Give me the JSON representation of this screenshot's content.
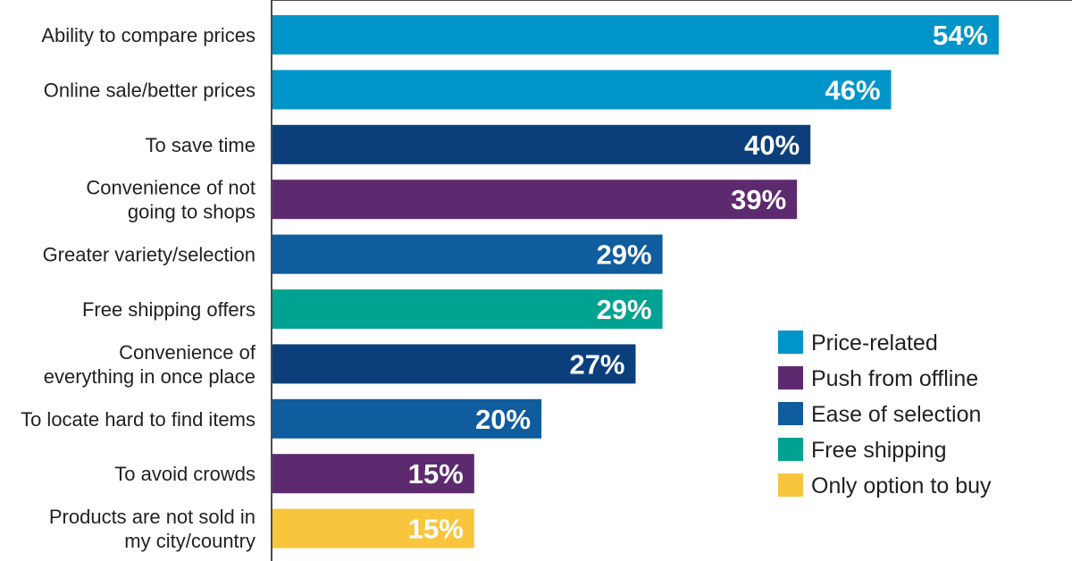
{
  "chart_data": {
    "type": "bar",
    "orientation": "horizontal",
    "categories": [
      [
        "Ability to compare prices"
      ],
      [
        "Online sale/better prices"
      ],
      [
        "To save time"
      ],
      [
        "Convenience of not",
        "going to shops"
      ],
      [
        "Greater variety/selection"
      ],
      [
        "Free shipping offers"
      ],
      [
        "Convenience of",
        "everything in once place"
      ],
      [
        "To locate hard to find items"
      ],
      [
        "To avoid crowds"
      ],
      [
        "Products are not sold in",
        "my city/country"
      ]
    ],
    "values": [
      54,
      46,
      40,
      39,
      29,
      29,
      27,
      20,
      15,
      15
    ],
    "value_labels": [
      "54%",
      "46%",
      "40%",
      "39%",
      "29%",
      "29%",
      "27%",
      "20%",
      "15%",
      "15%"
    ],
    "groups": [
      "Price-related",
      "Price-related",
      "Ease of selection",
      "Push from offline",
      "Ease of selection",
      "Free shipping",
      "Ease of selection",
      "Ease of selection",
      "Push from offline",
      "Only option to buy"
    ],
    "bar_colors": [
      "#0094c9",
      "#0094c9",
      "#0b3f7c",
      "#5e2a6f",
      "#0f5c9e",
      "#00a291",
      "#0b3f7c",
      "#0f5c9e",
      "#5e2a6f",
      "#f8c53c"
    ],
    "legend": [
      {
        "label": "Price-related",
        "color": "#0094c9"
      },
      {
        "label": "Push from offline",
        "color": "#5e2a6f"
      },
      {
        "label": "Ease of selection",
        "color": "#0f5c9e"
      },
      {
        "label": "Free shipping",
        "color": "#00a291"
      },
      {
        "label": "Only option to buy",
        "color": "#f8c53c"
      }
    ],
    "legend_position": "right",
    "xlim": [
      0,
      54
    ],
    "grid": false,
    "title": "",
    "xlabel": "",
    "ylabel": ""
  }
}
